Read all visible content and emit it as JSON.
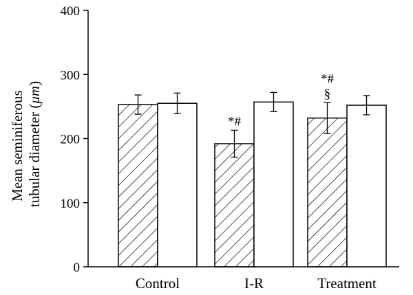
{
  "chart_data": {
    "type": "bar",
    "categories": [
      "Control",
      "I-R",
      "Treatment"
    ],
    "series": [
      {
        "pattern": "hatched",
        "fill": "#ffffff",
        "stroke": "#000000",
        "values": [
          253,
          192,
          232
        ],
        "errors": [
          15,
          21,
          24
        ]
      },
      {
        "pattern": "open",
        "fill": "#ffffff",
        "stroke": "#000000",
        "values": [
          255,
          257,
          252
        ],
        "errors": [
          16,
          15,
          15
        ]
      }
    ],
    "annotations": [
      {
        "category": "I-R",
        "series": 0,
        "lines": [
          "*#"
        ]
      },
      {
        "category": "Treatment",
        "series": 0,
        "lines": [
          "*#",
          "§"
        ]
      }
    ],
    "title": "",
    "xlabel": "",
    "ylabel_line1": "Mean seminiferous",
    "ylabel_line2_prefix": "tubular diameter (",
    "ylabel_unit": "μm",
    "ylabel_line2_suffix": ")",
    "ylim": [
      0,
      400
    ],
    "yticks": [
      0,
      100,
      200,
      300,
      400
    ],
    "grid": false,
    "legend": "none"
  }
}
